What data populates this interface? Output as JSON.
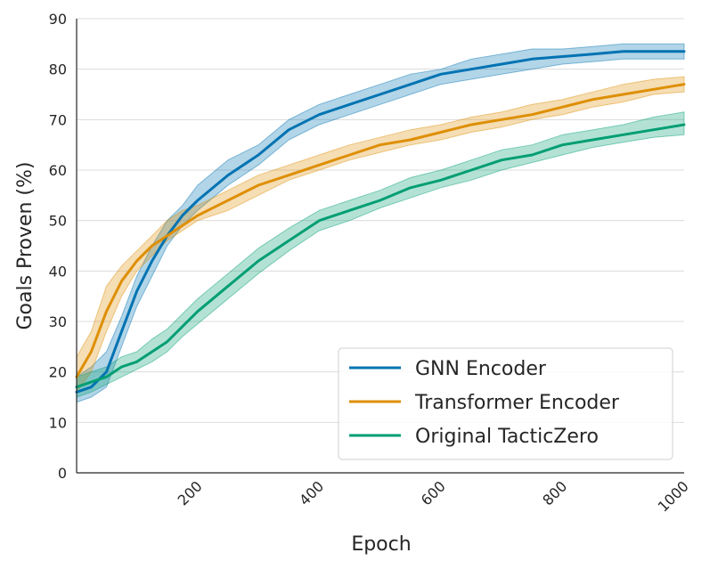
{
  "chart_data": {
    "type": "line",
    "title": "",
    "xlabel": "Epoch",
    "ylabel": "Goals Proven (%)",
    "xlim": [
      1,
      1000
    ],
    "ylim": [
      0,
      90
    ],
    "xticks": [
      200,
      400,
      600,
      800,
      1000
    ],
    "yticks": [
      0,
      10,
      20,
      30,
      40,
      50,
      60,
      70,
      80,
      90
    ],
    "grid": "horizontal",
    "legend_position": "lower-right",
    "series": [
      {
        "name": "GNN Encoder",
        "color": "#0173b2",
        "x": [
          1,
          25,
          50,
          75,
          100,
          125,
          150,
          175,
          200,
          250,
          300,
          350,
          400,
          450,
          500,
          550,
          600,
          650,
          700,
          750,
          800,
          850,
          900,
          950,
          1000
        ],
        "y": [
          16,
          17,
          20,
          28,
          36,
          42,
          47,
          51,
          54,
          59,
          63,
          68,
          71,
          73,
          75,
          77,
          79,
          80,
          81,
          82,
          82.5,
          83,
          83.5,
          83.5,
          83.5
        ],
        "lower": [
          14,
          15,
          17,
          25,
          33,
          39,
          45,
          49,
          52,
          57,
          61,
          66,
          69,
          71,
          73,
          75,
          77,
          78,
          79,
          80,
          81,
          81.5,
          82,
          82,
          82
        ],
        "upper": [
          19,
          21,
          24,
          31,
          39,
          45,
          50,
          53,
          57,
          62,
          65,
          70,
          73,
          75,
          77,
          79,
          80,
          82,
          83,
          84,
          84,
          84.5,
          85,
          85,
          85
        ]
      },
      {
        "name": "Transformer Encoder",
        "color": "#de8f05",
        "x": [
          1,
          25,
          50,
          75,
          100,
          125,
          150,
          175,
          200,
          250,
          300,
          350,
          400,
          450,
          500,
          550,
          600,
          650,
          700,
          750,
          800,
          850,
          900,
          950,
          1000
        ],
        "y": [
          19,
          24,
          32,
          38,
          42,
          45,
          47,
          49,
          51,
          54,
          57,
          59,
          61,
          63,
          65,
          66,
          67.5,
          69,
          70,
          71,
          72.5,
          74,
          75,
          76,
          77
        ],
        "lower": [
          16,
          20,
          28,
          35,
          40,
          43,
          46,
          48,
          50,
          52,
          55,
          58,
          60,
          62,
          63.5,
          65,
          66,
          67.5,
          68.5,
          70,
          71,
          72.5,
          73.5,
          75,
          75.5
        ],
        "upper": [
          23,
          28,
          37,
          41,
          44,
          47,
          50,
          52,
          53,
          56,
          59,
          61,
          63,
          65,
          66.5,
          68,
          69,
          70.5,
          71.5,
          73,
          74,
          75.5,
          77,
          78,
          78.5
        ]
      },
      {
        "name": "Original TacticZero",
        "color": "#029e73",
        "x": [
          1,
          25,
          50,
          75,
          100,
          125,
          150,
          175,
          200,
          250,
          300,
          350,
          400,
          450,
          500,
          550,
          600,
          650,
          700,
          750,
          800,
          850,
          900,
          950,
          1000
        ],
        "y": [
          17,
          18,
          19,
          21,
          22,
          24,
          26,
          29,
          32,
          37,
          42,
          46,
          50,
          52,
          54,
          56.5,
          58,
          60,
          62,
          63,
          65,
          66,
          67,
          68,
          69
        ],
        "lower": [
          15,
          16,
          17.5,
          19,
          20.5,
          22,
          24,
          27,
          29.5,
          34.5,
          39.5,
          44,
          48,
          50,
          52.5,
          54.5,
          56.5,
          58,
          60,
          61.5,
          63,
          64.5,
          65.5,
          66.5,
          67
        ],
        "upper": [
          19,
          20,
          21,
          23,
          24,
          26.5,
          28.5,
          31.5,
          34.5,
          39.5,
          44.5,
          48.5,
          52,
          54,
          56,
          58.5,
          60,
          62,
          64,
          65,
          67,
          68,
          69,
          70.5,
          71.5
        ]
      }
    ]
  }
}
